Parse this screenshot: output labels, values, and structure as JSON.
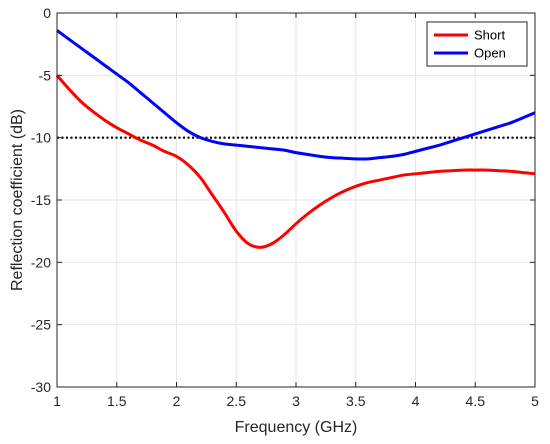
{
  "chart_data": {
    "type": "line",
    "xlabel": "Frequency (GHz)",
    "ylabel": "Reflection coefficient (dB)",
    "xlim": [
      1,
      5
    ],
    "ylim": [
      -30,
      0
    ],
    "xticks": [
      1,
      1.5,
      2,
      2.5,
      3,
      3.5,
      4,
      4.5,
      5
    ],
    "xtick_labels": [
      "1",
      "1.5",
      "2",
      "2.5",
      "3",
      "3.5",
      "4",
      "4.5",
      "5"
    ],
    "yticks": [
      0,
      -5,
      -10,
      -15,
      -20,
      -25,
      -30
    ],
    "ytick_labels": [
      "0",
      "-5",
      "-10",
      "-15",
      "-20",
      "-25",
      "-30"
    ],
    "grid": true,
    "legend_position": "top-right",
    "reference_line": {
      "y": -10,
      "style": "dotted",
      "color": "#000000"
    },
    "series": [
      {
        "name": "Short",
        "color": "#ff0000",
        "x": [
          1.0,
          1.1,
          1.2,
          1.3,
          1.4,
          1.5,
          1.6,
          1.7,
          1.8,
          1.9,
          2.0,
          2.1,
          2.2,
          2.3,
          2.4,
          2.5,
          2.6,
          2.7,
          2.8,
          2.9,
          3.0,
          3.1,
          3.2,
          3.3,
          3.4,
          3.5,
          3.6,
          3.7,
          3.8,
          3.9,
          4.0,
          4.1,
          4.2,
          4.3,
          4.4,
          4.5,
          4.6,
          4.7,
          4.8,
          4.9,
          5.0
        ],
        "values": [
          -5.0,
          -6.1,
          -7.1,
          -7.9,
          -8.6,
          -9.2,
          -9.7,
          -10.2,
          -10.6,
          -11.1,
          -11.5,
          -12.2,
          -13.2,
          -14.6,
          -16.0,
          -17.5,
          -18.5,
          -18.8,
          -18.5,
          -17.8,
          -16.9,
          -16.1,
          -15.4,
          -14.8,
          -14.3,
          -13.9,
          -13.6,
          -13.4,
          -13.2,
          -13.0,
          -12.9,
          -12.8,
          -12.7,
          -12.65,
          -12.6,
          -12.6,
          -12.6,
          -12.65,
          -12.7,
          -12.8,
          -12.9
        ]
      },
      {
        "name": "Open",
        "color": "#0000ff",
        "x": [
          1.0,
          1.1,
          1.2,
          1.3,
          1.4,
          1.5,
          1.6,
          1.7,
          1.8,
          1.9,
          2.0,
          2.1,
          2.2,
          2.3,
          2.4,
          2.5,
          2.6,
          2.7,
          2.8,
          2.9,
          3.0,
          3.1,
          3.2,
          3.3,
          3.4,
          3.5,
          3.6,
          3.7,
          3.8,
          3.9,
          4.0,
          4.1,
          4.2,
          4.3,
          4.4,
          4.5,
          4.6,
          4.7,
          4.8,
          4.9,
          5.0
        ],
        "values": [
          -1.4,
          -2.1,
          -2.8,
          -3.5,
          -4.2,
          -4.9,
          -5.6,
          -6.4,
          -7.2,
          -8.0,
          -8.8,
          -9.5,
          -10.0,
          -10.3,
          -10.5,
          -10.6,
          -10.7,
          -10.8,
          -10.9,
          -11.0,
          -11.2,
          -11.35,
          -11.5,
          -11.6,
          -11.65,
          -11.7,
          -11.7,
          -11.6,
          -11.5,
          -11.35,
          -11.1,
          -10.85,
          -10.6,
          -10.3,
          -10.0,
          -9.7,
          -9.4,
          -9.1,
          -8.8,
          -8.4,
          -8.0
        ]
      }
    ]
  }
}
